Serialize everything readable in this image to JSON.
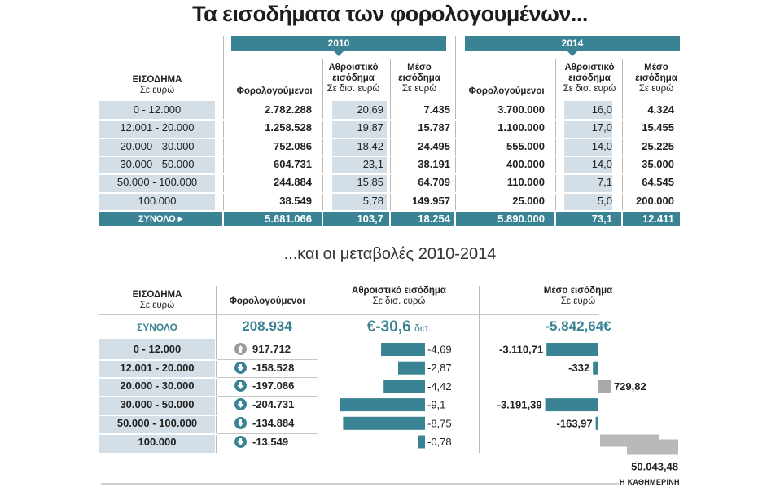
{
  "title": "Τα εισοδήματα των φορολογουμένων...",
  "subtitle": "...και οι μεταβολές 2010-2014",
  "credit": "Η ΚΑΘΗΜΕΡΙΝΗ",
  "colors": {
    "accent": "#3a8394",
    "shade": "#d3dee6",
    "gray": "#a9a9a9"
  },
  "table1": {
    "year_a": "2010",
    "year_b": "2014",
    "income_header": [
      "ΕΙΣΟΔΗΜΑ",
      "Σε ευρώ"
    ],
    "taxpayers_header": "Φορολογούμενοι",
    "cumulative_header": [
      "Αθροιστικό",
      "εισόδημα",
      "Σε δισ. ευρώ"
    ],
    "average_header": [
      "Μέσο",
      "εισόδημα",
      "Σε ευρώ"
    ],
    "rows": [
      {
        "band": "0  -  12.000",
        "tp2010": "2.782.288",
        "cum2010": "20,69",
        "avg2010": "7.435",
        "tp2014": "3.700.000",
        "cum2014": "16,0",
        "avg2014": "4.324"
      },
      {
        "band": "12.001  -  20.000",
        "tp2010": "1.258.528",
        "cum2010": "19,87",
        "avg2010": "15.787",
        "tp2014": "1.100.000",
        "cum2014": "17,0",
        "avg2014": "15.455"
      },
      {
        "band": "20.000  -  30.000",
        "tp2010": "752.086",
        "cum2010": "18,42",
        "avg2010": "24.495",
        "tp2014": "555.000",
        "cum2014": "14,0",
        "avg2014": "25.225"
      },
      {
        "band": "30.000  -  50.000",
        "tp2010": "604.731",
        "cum2010": "23,1",
        "avg2010": "38.191",
        "tp2014": "400.000",
        "cum2014": "14,0",
        "avg2014": "35.000"
      },
      {
        "band": "50.000  -  100.000",
        "tp2010": "244.884",
        "cum2010": "15,85",
        "avg2010": "64.709",
        "tp2014": "110.000",
        "cum2014": "7,1",
        "avg2014": "64.545"
      },
      {
        "band": "100.000",
        "tp2010": "38.549",
        "cum2010": "5,78",
        "avg2010": "149.957",
        "tp2014": "25.000",
        "cum2014": "5,0",
        "avg2014": "200.000"
      }
    ],
    "total": {
      "label": "ΣΥΝΟΛΟ",
      "tp2010": "5.681.066",
      "cum2010": "103,7",
      "avg2010": "18.254",
      "tp2014": "5.890.000",
      "cum2014": "73,1",
      "avg2014": "12.411"
    }
  },
  "table2": {
    "income_header": [
      "ΕΙΣΟΔΗΜΑ",
      "Σε ευρώ"
    ],
    "taxpayers_header": "Φορολογούμενοι",
    "cumulative_header": [
      "Αθροιστικό εισόδημα",
      "Σε δισ. ευρώ"
    ],
    "average_header": [
      "Μέσο εισόδημα",
      "Σε ευρώ"
    ],
    "total_label": "ΣΥΝΟΛΟ",
    "total_taxpayers": "208.934",
    "total_cumulative": "€-30,6",
    "total_cumulative_unit": "δισ.",
    "total_average": "-5.842,64€",
    "bands": [
      "0  -  12.000",
      "12.001  -  20.000",
      "20.000  -  30.000",
      "30.000  -  50.000",
      "50.000  -  100.000",
      "100.000"
    ],
    "taxpayer_labels": [
      "917.712",
      "-158.528",
      "-197.086",
      "-204.731",
      "-134.884",
      "-13.549"
    ],
    "taxpayer_direction": [
      "up-arrow-icon",
      "down-arrow-icon",
      "down-arrow-icon",
      "down-arrow-icon",
      "down-arrow-icon",
      "down-arrow-icon"
    ],
    "cumulative_labels": [
      "-4,69",
      "-2,87",
      "-4,42",
      "-9,1",
      "-8,75",
      "-0,78"
    ],
    "average_labels": [
      "-3.110,71",
      "-332",
      "729,82",
      "-3.191,39",
      "-163,97",
      "50.043,48"
    ]
  },
  "chart_data": [
    {
      "type": "bar",
      "title": "Αθροιστικό εισόδημα",
      "ylabel": "Σε δισ. ευρώ",
      "categories": [
        "0  -  12.000",
        "12.001  -  20.000",
        "20.000  -  30.000",
        "30.000  -  50.000",
        "50.000  -  100.000",
        "100.000"
      ],
      "values": [
        -4.69,
        -2.87,
        -4.42,
        -9.1,
        -8.75,
        -0.78
      ],
      "orientation": "horizontal"
    },
    {
      "type": "bar",
      "title": "Μέσο εισόδημα",
      "ylabel": "Σε ευρώ",
      "categories": [
        "0  -  12.000",
        "12.001  -  20.000",
        "20.000  -  30.000",
        "30.000  -  50.000",
        "50.000  -  100.000",
        "100.000"
      ],
      "values": [
        -3110.71,
        -332,
        729.82,
        -3191.39,
        -163.97,
        50043.48
      ],
      "orientation": "horizontal"
    }
  ]
}
